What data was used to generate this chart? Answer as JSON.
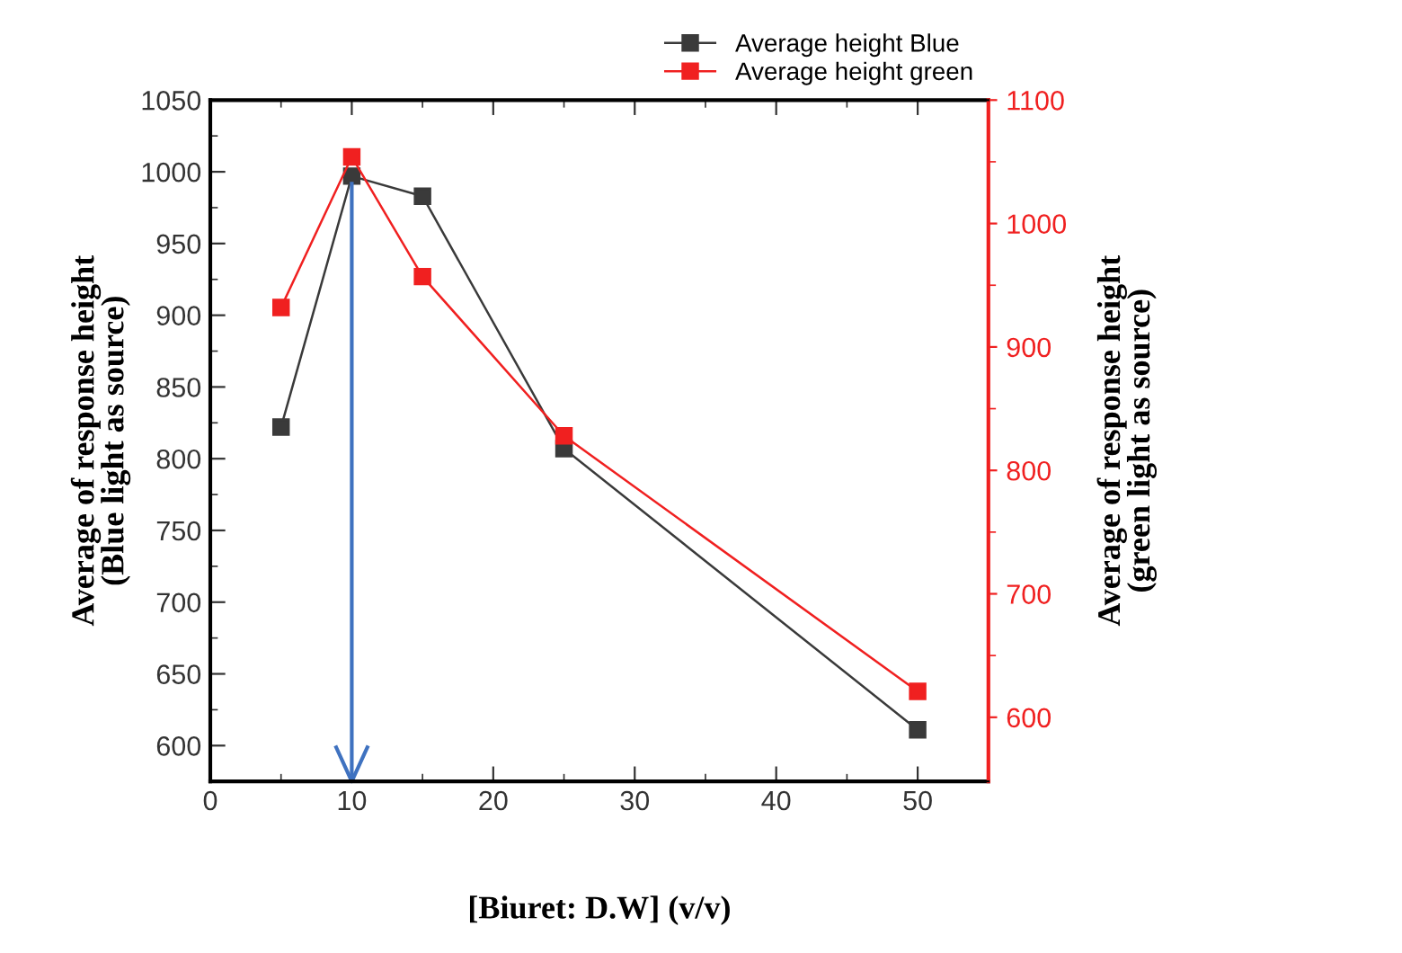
{
  "chart_data": {
    "type": "line",
    "xlabel": "[Biuret: D.W] (v/v)",
    "ylabel": "Average of response height\n(Blue light as source)",
    "y2label": "Average of response height\n(green light as source)",
    "x": [
      5,
      10,
      15,
      25,
      50
    ],
    "series": [
      {
        "name": "Average height Blue",
        "color": "#3a3a3a",
        "values": [
          822,
          997,
          983,
          807,
          611
        ]
      },
      {
        "name": "Average height green",
        "color": "#f02020",
        "axis": "y2",
        "values": [
          932,
          1054,
          957,
          828,
          621
        ]
      }
    ],
    "xlim": [
      0,
      55
    ],
    "xticks": [
      0,
      10,
      20,
      30,
      40,
      50
    ],
    "ylim": [
      575,
      1050
    ],
    "yticks": [
      600,
      650,
      700,
      750,
      800,
      850,
      900,
      950,
      1000,
      1050
    ],
    "y2lim": [
      548,
      1100
    ],
    "y2ticks": [
      600,
      700,
      800,
      900,
      1000,
      1100
    ],
    "ref_lines": [
      {
        "axis": "x",
        "value": 10,
        "color": "#3f72c0"
      }
    ],
    "marker": "square",
    "legend": "top right",
    "grid": false
  }
}
